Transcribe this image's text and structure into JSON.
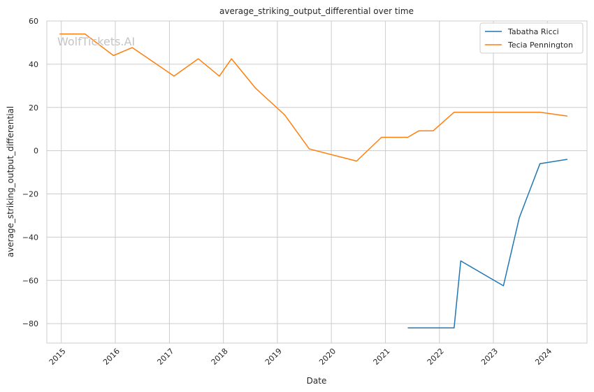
{
  "chart_data": {
    "type": "line",
    "title": "average_striking_output_differential over time",
    "xlabel": "Date",
    "ylabel": "average_striking_output_differential",
    "watermark": "WolfTickets.AI",
    "x_ticks": [
      "2015",
      "2016",
      "2017",
      "2018",
      "2019",
      "2020",
      "2021",
      "2022",
      "2023",
      "2024"
    ],
    "y_ticks": [
      60,
      40,
      20,
      0,
      -20,
      -40,
      -60,
      -80
    ],
    "xlim": [
      "2014-09-25",
      "2024-09-25"
    ],
    "ylim": [
      -89,
      60
    ],
    "grid": true,
    "legend_position": "top-right",
    "series": [
      {
        "name": "Tabatha Ricci",
        "color": "#1f77b4",
        "points": [
          [
            "2021-06-01",
            -82
          ],
          [
            "2022-04-10",
            -82
          ],
          [
            "2022-05-25",
            -51
          ],
          [
            "2023-03-10",
            -62.5
          ],
          [
            "2023-06-25",
            -31
          ],
          [
            "2023-11-12",
            -6
          ],
          [
            "2024-05-15",
            -4
          ]
        ]
      },
      {
        "name": "Tecia Pennington",
        "color": "#ff7f0e",
        "points": [
          [
            "2014-12-20",
            54
          ],
          [
            "2015-06-10",
            54
          ],
          [
            "2015-12-20",
            44
          ],
          [
            "2016-04-25",
            47.7
          ],
          [
            "2017-02-01",
            34.5
          ],
          [
            "2017-07-15",
            42.5
          ],
          [
            "2017-12-05",
            34.5
          ],
          [
            "2018-02-25",
            42.5
          ],
          [
            "2018-08-05",
            29
          ],
          [
            "2019-02-20",
            16.5
          ],
          [
            "2019-08-05",
            0.8
          ],
          [
            "2020-06-20",
            -4.8
          ],
          [
            "2020-12-05",
            6.2
          ],
          [
            "2021-06-01",
            6.2
          ],
          [
            "2021-08-15",
            9.2
          ],
          [
            "2021-11-20",
            9.2
          ],
          [
            "2022-04-10",
            17.8
          ],
          [
            "2023-02-15",
            17.8
          ],
          [
            "2023-11-12",
            17.8
          ],
          [
            "2024-05-15",
            16
          ]
        ]
      }
    ]
  }
}
